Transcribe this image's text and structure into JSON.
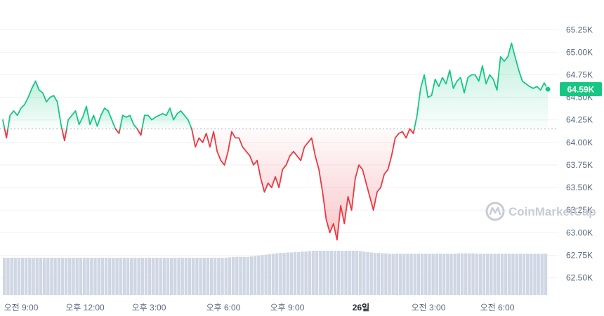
{
  "chart_data": {
    "type": "line",
    "x_labels": [
      "오전 9:00",
      "오후 12:00",
      "오후 3:00",
      "오후 6:00",
      "오후 9:00",
      "26일",
      "오전 3:00",
      "오전 6:00"
    ],
    "x_label_bold": "26일",
    "y_ticks": [
      "65.25K",
      "65.00K",
      "64.75K",
      "64.50K",
      "64.25K",
      "64.00K",
      "63.75K",
      "63.50K",
      "63.25K",
      "63.00K",
      "62.75K",
      "62.50K"
    ],
    "ylim": [
      62.38,
      65.47
    ],
    "baseline": 64.15,
    "current_value_label": "64.59K",
    "watermark": "CoinMarketCap",
    "colors": {
      "up": "#16c784",
      "down": "#ea3943",
      "badge": "#16c784",
      "volume": "#cfd6e4",
      "grid": "#eff2f5"
    },
    "series": [
      {
        "values": [
          64.25,
          64.05,
          64.3,
          64.35,
          64.3,
          64.38,
          64.42,
          64.5,
          64.6,
          64.68,
          64.58,
          64.55,
          64.45,
          64.5,
          64.52,
          64.45,
          64.2,
          64.02,
          64.25,
          64.3,
          64.35,
          64.2,
          64.28,
          64.4,
          64.2,
          64.3,
          64.18,
          64.3,
          64.38,
          64.35,
          64.25,
          64.15,
          64.1,
          64.3,
          64.28,
          64.3,
          64.2,
          64.15,
          64.08,
          64.3,
          64.3,
          64.25,
          64.28,
          64.3,
          64.32,
          64.3,
          64.38,
          64.25,
          64.32,
          64.35,
          64.3,
          64.25,
          64.15,
          63.95,
          64.05,
          64.0,
          64.1,
          63.95,
          64.12,
          63.9,
          63.8,
          63.75,
          63.9,
          64.12,
          64.05,
          64.05,
          63.95,
          63.9,
          63.85,
          63.75,
          63.8,
          63.6,
          63.45,
          63.55,
          63.5,
          63.62,
          63.5,
          63.7,
          63.75,
          63.85,
          63.9,
          63.85,
          63.8,
          63.95,
          64.0,
          64.05,
          63.85,
          63.7,
          63.45,
          63.15,
          63.0,
          63.1,
          62.92,
          63.3,
          63.1,
          63.4,
          63.25,
          63.6,
          63.75,
          63.7,
          63.55,
          63.4,
          63.25,
          63.45,
          63.5,
          63.65,
          63.7,
          63.85,
          64.05,
          64.1,
          64.12,
          64.05,
          64.15,
          64.1,
          64.3,
          64.6,
          64.75,
          64.5,
          64.52,
          64.7,
          64.62,
          64.72,
          64.65,
          64.8,
          64.6,
          64.68,
          64.72,
          64.55,
          64.72,
          64.75,
          64.75,
          64.68,
          64.85,
          64.65,
          64.75,
          64.7,
          64.58,
          64.95,
          64.9,
          64.95,
          65.1,
          64.95,
          64.8,
          64.68,
          64.65,
          64.62,
          64.6,
          64.62,
          64.58,
          64.66,
          64.59
        ]
      }
    ],
    "volume": [
      0.84,
      0.84,
      0.84,
      0.84,
      0.84,
      0.84,
      0.84,
      0.84,
      0.84,
      0.84,
      0.84,
      0.84,
      0.84,
      0.84,
      0.84,
      0.84,
      0.84,
      0.84,
      0.84,
      0.84,
      0.84,
      0.84,
      0.84,
      0.84,
      0.84,
      0.84,
      0.84,
      0.84,
      0.84,
      0.84,
      0.84,
      0.84,
      0.84,
      0.84,
      0.84,
      0.84,
      0.84,
      0.84,
      0.84,
      0.84,
      0.84,
      0.84,
      0.84,
      0.84,
      0.84,
      0.84,
      0.84,
      0.84,
      0.84,
      0.84,
      0.84,
      0.84,
      0.84,
      0.84,
      0.84,
      0.84,
      0.84,
      0.84,
      0.84,
      0.84,
      0.84,
      0.84,
      0.85,
      0.86,
      0.86,
      0.86,
      0.86,
      0.86,
      0.87,
      0.88,
      0.89,
      0.9,
      0.91,
      0.92,
      0.93,
      0.94,
      0.95,
      0.95,
      0.96,
      0.96,
      0.97,
      0.97,
      0.98,
      0.98,
      0.99,
      1.0,
      1.0,
      1.0,
      1.0,
      1.0,
      1.0,
      1.0,
      1.0,
      1.0,
      1.0,
      1.0,
      1.0,
      1.0,
      0.99,
      0.98,
      0.97,
      0.96,
      0.95,
      0.95,
      0.94,
      0.94,
      0.93,
      0.93,
      0.93,
      0.93,
      0.93,
      0.93,
      0.93,
      0.93,
      0.93,
      0.93,
      0.93,
      0.93,
      0.93,
      0.93,
      0.93,
      0.93,
      0.93,
      0.93,
      0.93,
      0.94,
      0.94,
      0.94,
      0.94,
      0.94,
      0.93,
      0.93,
      0.93,
      0.93,
      0.93,
      0.93,
      0.93,
      0.93,
      0.93,
      0.93,
      0.93,
      0.93,
      0.93,
      0.93,
      0.93,
      0.93,
      0.93,
      0.93,
      0.93,
      0.93
    ]
  }
}
